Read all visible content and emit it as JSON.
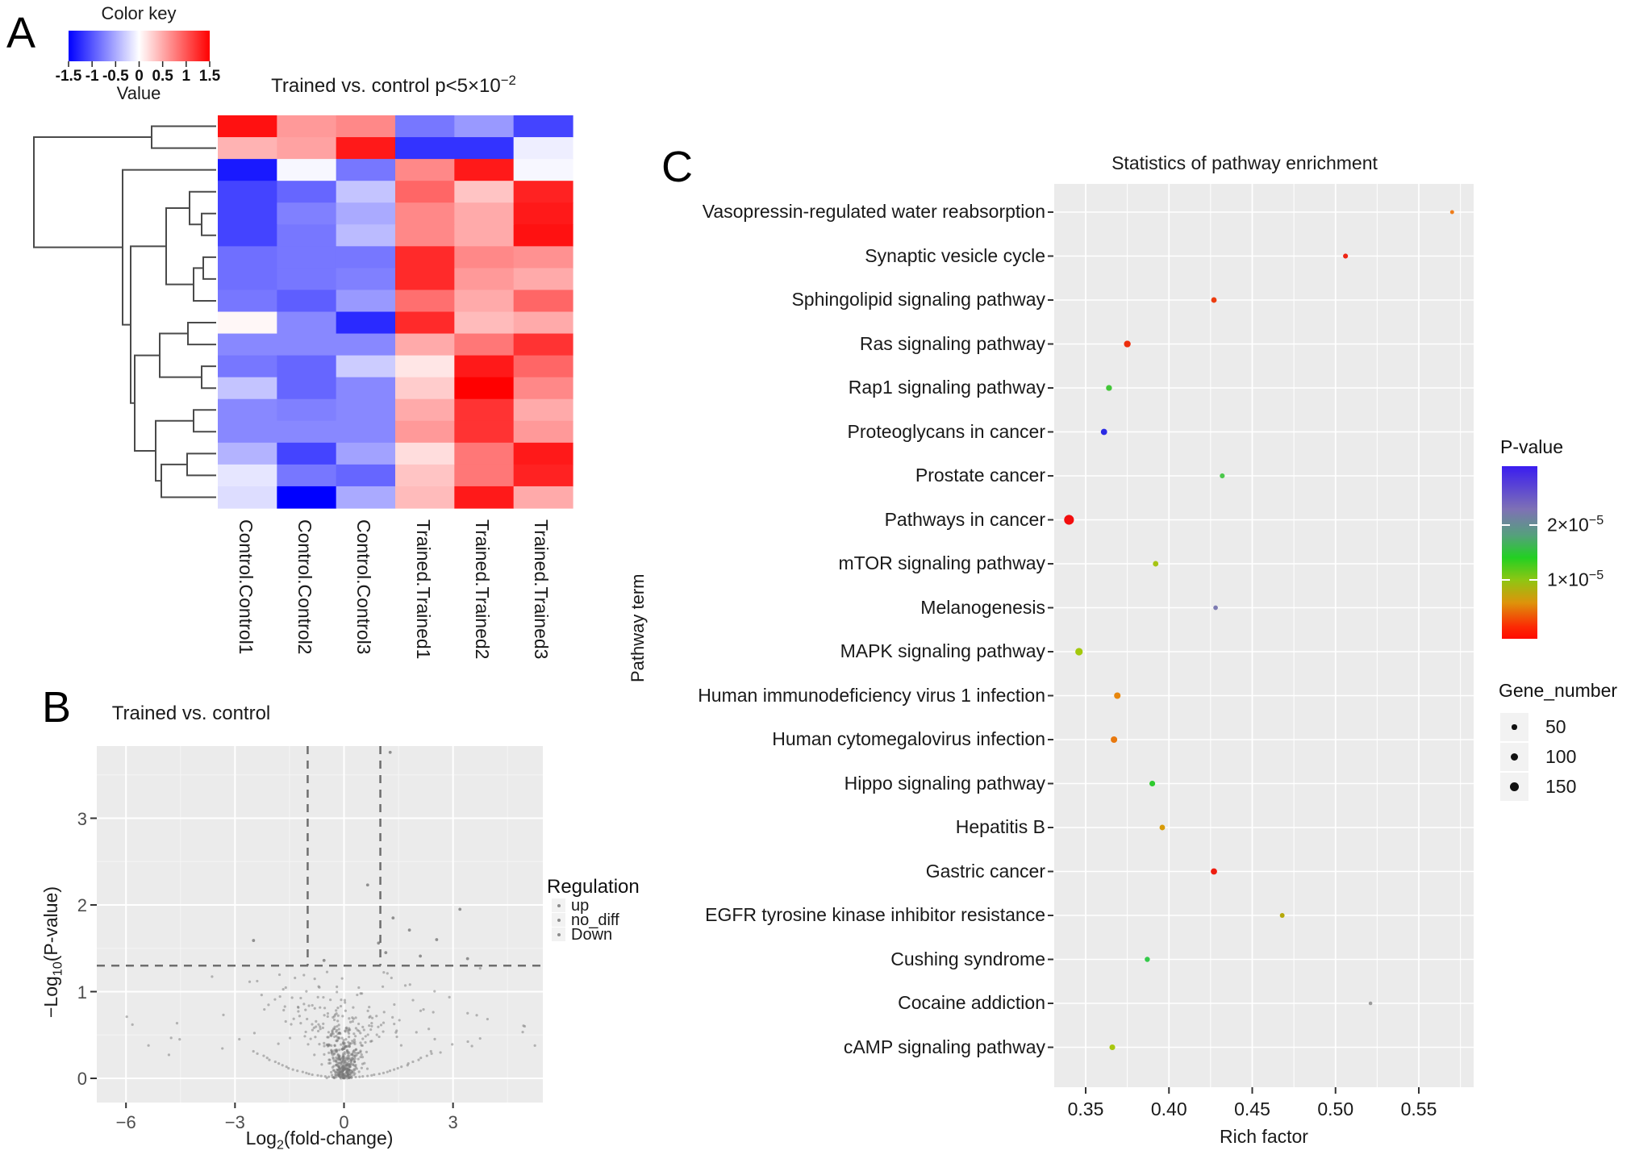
{
  "panels": {
    "a": {
      "label": "A",
      "color_key": {
        "title": "Color key",
        "ticks": [
          "-1.5",
          "-1",
          "-0.5",
          "0",
          "0.5",
          "1",
          "1.5"
        ],
        "axis_label": "Value"
      },
      "title_pre": "Trained vs. control p<5×10",
      "title_sup": "−2"
    },
    "b": {
      "label": "B",
      "title": "Trained vs. control",
      "ylabel_pre": "−Log",
      "ylabel_sub": "10",
      "ylabel_post": "(P-value)",
      "xlabel_pre": "Log",
      "xlabel_sub": "2",
      "xlabel_post": "(fold-change)",
      "legend": {
        "title": "Regulation",
        "items": [
          "up",
          "no_diff",
          "Down"
        ]
      }
    },
    "c": {
      "label": "C",
      "title": "Statistics of pathway enrichment",
      "xlabel": "Rich factor",
      "ylabel": "Pathway term",
      "legend_pvalue": {
        "title": "P-value",
        "ticks": [
          {
            "pre": "2×10",
            "sup": "−5"
          },
          {
            "pre": "1×10",
            "sup": "−5"
          }
        ]
      },
      "legend_size": {
        "title": "Gene_number",
        "items": [
          "50",
          "100",
          "150"
        ]
      }
    }
  },
  "chart_data": [
    {
      "type": "heatmap",
      "title": "Trained vs. control p<5×10^-2",
      "colorscale": "blue-white-red",
      "value_range": [
        -1.5,
        1.5
      ],
      "legend": {
        "title": "Color key",
        "ticks": [
          -1.5,
          -1,
          -0.5,
          0,
          0.5,
          1,
          1.5
        ],
        "label": "Value"
      },
      "columns": [
        "Control.Control1",
        "Control.Control2",
        "Control.Control3",
        "Trained.Trained1",
        "Trained.Trained2",
        "Trained.Trained3"
      ],
      "values": [
        [
          1.4,
          0.6,
          0.7,
          -0.8,
          -0.6,
          -1.1
        ],
        [
          0.45,
          0.55,
          1.35,
          -1.2,
          -1.2,
          -0.1
        ],
        [
          -1.35,
          -0.05,
          -0.8,
          0.7,
          1.35,
          -0.05
        ],
        [
          -1.1,
          -0.9,
          -0.35,
          0.9,
          0.35,
          1.3
        ],
        [
          -1.1,
          -0.75,
          -0.5,
          0.7,
          0.5,
          1.35
        ],
        [
          -1.1,
          -0.8,
          -0.4,
          0.7,
          0.5,
          1.4
        ],
        [
          -0.85,
          -0.8,
          -0.8,
          1.25,
          0.7,
          0.65
        ],
        [
          -0.85,
          -0.8,
          -0.75,
          1.25,
          0.6,
          0.5
        ],
        [
          -0.8,
          -0.95,
          -0.6,
          0.85,
          0.5,
          0.9
        ],
        [
          0.05,
          -0.7,
          -1.25,
          1.25,
          0.4,
          0.5
        ],
        [
          -0.7,
          -0.7,
          -0.7,
          0.5,
          0.8,
          1.2
        ],
        [
          -0.8,
          -0.9,
          -0.3,
          0.15,
          1.35,
          0.9
        ],
        [
          -0.35,
          -0.9,
          -0.7,
          0.3,
          1.5,
          0.7
        ],
        [
          -0.7,
          -0.75,
          -0.7,
          0.5,
          1.2,
          0.5
        ],
        [
          -0.7,
          -0.7,
          -0.7,
          0.6,
          1.2,
          0.6
        ],
        [
          -0.45,
          -1.1,
          -0.55,
          0.2,
          0.8,
          1.35
        ],
        [
          -0.15,
          -0.8,
          -0.9,
          0.35,
          0.8,
          1.3
        ],
        [
          -0.2,
          -1.5,
          -0.5,
          0.4,
          1.35,
          0.5
        ]
      ],
      "dendrogram": {
        "leaf_count": 18,
        "merges": [
          {
            "x": 250,
            "c": [
              "r5",
              "r6"
            ]
          },
          {
            "x": 235,
            "c": [
              "r4",
              "m0"
            ]
          },
          {
            "x": 252,
            "c": [
              "r7",
              "r8"
            ]
          },
          {
            "x": 240,
            "c": [
              "m2",
              "r9"
            ]
          },
          {
            "x": 206,
            "c": [
              "m1",
              "m3"
            ]
          },
          {
            "x": 233,
            "c": [
              "r10",
              "r11"
            ]
          },
          {
            "x": 250,
            "c": [
              "r12",
              "r13"
            ]
          },
          {
            "x": 198,
            "c": [
              "m5",
              "m6"
            ]
          },
          {
            "x": 240,
            "c": [
              "r14",
              "r15"
            ]
          },
          {
            "x": 232,
            "c": [
              "r16",
              "r17"
            ]
          },
          {
            "x": 200,
            "c": [
              "m9",
              "r18"
            ]
          },
          {
            "x": 193,
            "c": [
              "m8",
              "m10"
            ]
          },
          {
            "x": 167,
            "c": [
              "m7",
              "m11"
            ]
          },
          {
            "x": 162,
            "c": [
              "m4",
              "m12"
            ]
          },
          {
            "x": 152,
            "c": [
              "r3",
              "m13"
            ]
          },
          {
            "x": 188,
            "c": [
              "r1",
              "r2"
            ]
          },
          {
            "x": 42,
            "c": [
              "m15",
              "m14"
            ]
          }
        ]
      }
    },
    {
      "type": "scatter",
      "title": "Trained vs. control",
      "xlabel": "Log2(fold-change)",
      "ylabel": "-Log10(P-value)",
      "xlim": [
        -6.8,
        5.5
      ],
      "ylim": [
        -0.28,
        3.85
      ],
      "xticks": [
        "−6",
        "−3",
        "0",
        "3"
      ],
      "xtick_values": [
        -6,
        -3,
        0,
        3
      ],
      "yticks": [
        "0",
        "1",
        "2",
        "3"
      ],
      "ytick_values": [
        0,
        1,
        2,
        3
      ],
      "grid": true,
      "threshold_hline": 1.3,
      "threshold_vlines": [
        -1,
        1
      ],
      "legend": {
        "title": "Regulation",
        "items": [
          "up",
          "no_diff",
          "Down"
        ],
        "position": "right"
      },
      "point_color": "#787878",
      "notable_points": [
        [
          1.27,
          3.76
        ],
        [
          0.65,
          2.23
        ],
        [
          3.19,
          1.95
        ],
        [
          1.35,
          1.85
        ],
        [
          1.8,
          1.71
        ],
        [
          2.55,
          1.6
        ],
        [
          -2.49,
          1.59
        ],
        [
          0.95,
          1.56
        ],
        [
          1.15,
          1.45
        ],
        [
          2.1,
          1.41
        ],
        [
          -0.55,
          1.36
        ],
        [
          3.4,
          1.38
        ]
      ],
      "cloud": {
        "seed": 7,
        "n_core": 520,
        "n_tail": 42,
        "x_range": [
          -6.4,
          5.3
        ]
      }
    },
    {
      "type": "dotplot",
      "title": "Statistics of pathway enrichment",
      "xlabel": "Rich factor",
      "ylabel": "Pathway term",
      "xticks": [
        "0.35",
        "0.40",
        "0.45",
        "0.50",
        "0.55"
      ],
      "xtick_values": [
        0.35,
        0.4,
        0.45,
        0.5,
        0.55
      ],
      "xlim": [
        0.331,
        0.583
      ],
      "grid": true,
      "legend_pvalue": {
        "title": "P-value",
        "ticks": [
          "2×10^-5",
          "1×10^-5"
        ],
        "gradient": [
          "#3a1cf0",
          "#22d022",
          "#ff0a00"
        ]
      },
      "legend_size": {
        "title": "Gene_number",
        "items": [
          50,
          100,
          150
        ]
      },
      "pathways": [
        {
          "term": "Vasopressin-regulated water reabsorption",
          "rich_factor": 0.57,
          "gene_number": 20,
          "color": "#ef7d1a"
        },
        {
          "term": "Synaptic vesicle cycle",
          "rich_factor": 0.506,
          "gene_number": 45,
          "color": "#ee2413"
        },
        {
          "term": "Sphingolipid signaling pathway",
          "rich_factor": 0.427,
          "gene_number": 60,
          "color": "#ec3c0f"
        },
        {
          "term": "Ras signaling pathway",
          "rich_factor": 0.375,
          "gene_number": 90,
          "color": "#ed2e0d"
        },
        {
          "term": "Rap1 signaling pathway",
          "rich_factor": 0.364,
          "gene_number": 70,
          "color": "#43c639"
        },
        {
          "term": "Proteoglycans in cancer",
          "rich_factor": 0.361,
          "gene_number": 80,
          "color": "#2b2be4"
        },
        {
          "term": "Prostate cancer",
          "rich_factor": 0.432,
          "gene_number": 45,
          "color": "#4cc84c"
        },
        {
          "term": "Pathways in cancer",
          "rich_factor": 0.34,
          "gene_number": 170,
          "color": "#f20d0d"
        },
        {
          "term": "mTOR signaling pathway",
          "rich_factor": 0.392,
          "gene_number": 60,
          "color": "#a6c414"
        },
        {
          "term": "Melanogenesis",
          "rich_factor": 0.428,
          "gene_number": 35,
          "color": "#7d7bb2"
        },
        {
          "term": "MAPK signaling pathway",
          "rich_factor": 0.346,
          "gene_number": 110,
          "color": "#a3c80b"
        },
        {
          "term": "Human immunodeficiency virus 1 infection",
          "rich_factor": 0.369,
          "gene_number": 85,
          "color": "#e7860d"
        },
        {
          "term": "Human cytomegalovirus infection",
          "rich_factor": 0.367,
          "gene_number": 85,
          "color": "#e8790f"
        },
        {
          "term": "Hippo signaling pathway",
          "rich_factor": 0.39,
          "gene_number": 65,
          "color": "#2ecb2e"
        },
        {
          "term": "Hepatitis B",
          "rich_factor": 0.396,
          "gene_number": 60,
          "color": "#d89b07"
        },
        {
          "term": "Gastric cancer",
          "rich_factor": 0.427,
          "gene_number": 80,
          "color": "#ee1d10"
        },
        {
          "term": "EGFR tyrosine kinase inhibitor resistance",
          "rich_factor": 0.468,
          "gene_number": 40,
          "color": "#b5a80a"
        },
        {
          "term": "Cushing syndrome",
          "rich_factor": 0.387,
          "gene_number": 50,
          "color": "#35ca4b"
        },
        {
          "term": "Cocaine addiction",
          "rich_factor": 0.521,
          "gene_number": 12,
          "color": "#9b9b9b"
        },
        {
          "term": "cAMP signaling pathway",
          "rich_factor": 0.366,
          "gene_number": 65,
          "color": "#a8c70e"
        }
      ]
    }
  ]
}
